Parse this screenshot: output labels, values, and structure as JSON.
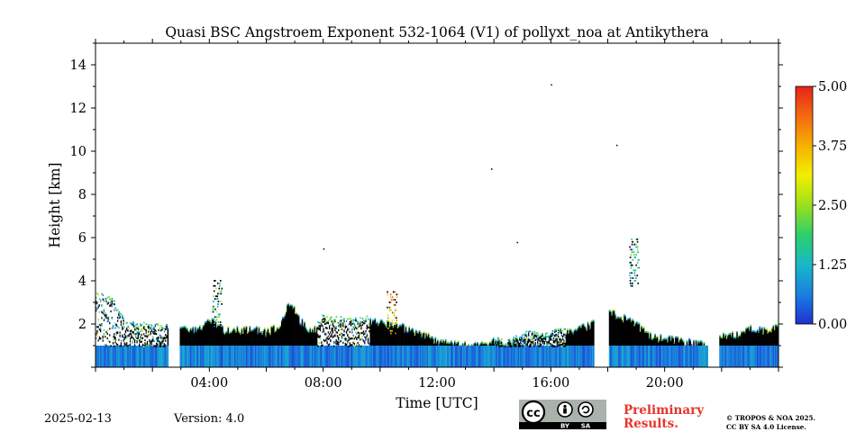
{
  "chart_data": {
    "type": "heatmap",
    "title": "Quasi BSC Angstroem Exponent 532-1064 (V1) of pollyxt_noa at Antikythera",
    "xlabel": "Time [UTC]",
    "ylabel": "Height [km]",
    "xlim_hours": [
      0,
      24
    ],
    "ylim_km": [
      0,
      15
    ],
    "x_ticks": [
      {
        "hour": 4,
        "label": "04:00"
      },
      {
        "hour": 8,
        "label": "08:00"
      },
      {
        "hour": 12,
        "label": "12:00"
      },
      {
        "hour": 16,
        "label": "16:00"
      },
      {
        "hour": 20,
        "label": "20:00"
      }
    ],
    "y_ticks": [
      {
        "value": 2,
        "label": "2"
      },
      {
        "value": 4,
        "label": "4"
      },
      {
        "value": 6,
        "label": "6"
      },
      {
        "value": 8,
        "label": "8"
      },
      {
        "value": 10,
        "label": "10"
      },
      {
        "value": 12,
        "label": "12"
      },
      {
        "value": 14,
        "label": "14"
      }
    ],
    "colorbar": {
      "min": 0.0,
      "max": 5.0,
      "ticks": [
        {
          "value": 0.0,
          "label": "0.00"
        },
        {
          "value": 1.25,
          "label": "1.25"
        },
        {
          "value": 2.5,
          "label": "2.50"
        },
        {
          "value": 3.75,
          "label": "3.75"
        },
        {
          "value": 5.0,
          "label": "5.00"
        }
      ],
      "colormap": [
        "#2030d0",
        "#1a7fe0",
        "#18b8c8",
        "#2ccf6a",
        "#9be01c",
        "#f0f000",
        "#f7b000",
        "#f46a10",
        "#e8221a"
      ]
    },
    "data_gaps_hours": [
      [
        2.55,
        2.95
      ],
      [
        17.5,
        18.0
      ],
      [
        21.5,
        21.9
      ]
    ],
    "layer_top_km": [
      [
        0.0,
        3.3
      ],
      [
        0.6,
        3.1
      ],
      [
        1.0,
        2.0
      ],
      [
        1.5,
        1.9
      ],
      [
        2.0,
        1.9
      ],
      [
        2.5,
        1.8
      ],
      [
        3.0,
        1.9
      ],
      [
        3.5,
        1.7
      ],
      [
        4.0,
        2.2
      ],
      [
        4.5,
        1.7
      ],
      [
        5.0,
        1.7
      ],
      [
        5.5,
        1.8
      ],
      [
        6.0,
        1.6
      ],
      [
        6.5,
        2.0
      ],
      [
        6.8,
        3.0
      ],
      [
        7.2,
        2.1
      ],
      [
        7.6,
        1.6
      ],
      [
        8.0,
        2.3
      ],
      [
        8.5,
        2.2
      ],
      [
        9.0,
        2.1
      ],
      [
        9.5,
        2.2
      ],
      [
        10.0,
        2.0
      ],
      [
        10.5,
        2.0
      ],
      [
        11.0,
        1.7
      ],
      [
        11.5,
        1.5
      ],
      [
        12.0,
        1.2
      ],
      [
        12.5,
        1.2
      ],
      [
        13.0,
        1.0
      ],
      [
        13.5,
        1.0
      ],
      [
        14.0,
        1.2
      ],
      [
        14.5,
        1.1
      ],
      [
        15.0,
        1.5
      ],
      [
        15.5,
        1.5
      ],
      [
        16.0,
        1.6
      ],
      [
        16.5,
        1.6
      ],
      [
        17.0,
        1.8
      ],
      [
        17.5,
        2.0
      ],
      [
        18.0,
        2.6
      ],
      [
        18.5,
        2.3
      ],
      [
        19.0,
        2.0
      ],
      [
        19.5,
        1.4
      ],
      [
        20.0,
        1.3
      ],
      [
        20.5,
        1.2
      ],
      [
        21.0,
        1.1
      ],
      [
        21.5,
        1.0
      ],
      [
        22.0,
        1.5
      ],
      [
        22.5,
        1.5
      ],
      [
        23.0,
        1.8
      ],
      [
        23.5,
        1.7
      ],
      [
        24.0,
        1.9
      ]
    ],
    "aerosol_base_km": 1.0,
    "elevated_features": [
      {
        "hour": 18.9,
        "bottom_km": 3.8,
        "top_km": 6.0,
        "value": 0.5
      },
      {
        "hour": 4.25,
        "bottom_km": 2.0,
        "top_km": 4.1,
        "value": 1.0
      },
      {
        "hour": 10.4,
        "bottom_km": 1.6,
        "top_km": 3.6,
        "value": 2.5
      }
    ],
    "date": "2025-02-13",
    "version": "Version: 4.0"
  },
  "footer": {
    "date": "2025-02-13",
    "version": "Version: 4.0",
    "preliminary_line1": "Preliminary",
    "preliminary_line2": "Results.",
    "copyright_line1": "© TROPOS & NOA 2025.",
    "copyright_line2": "CC BY SA 4.0 License.",
    "license_badge": {
      "cc": "cc",
      "by": "BY",
      "sa": "SA"
    }
  },
  "colors": {
    "precip_black": "#000000",
    "preliminary": "#e8332c"
  }
}
